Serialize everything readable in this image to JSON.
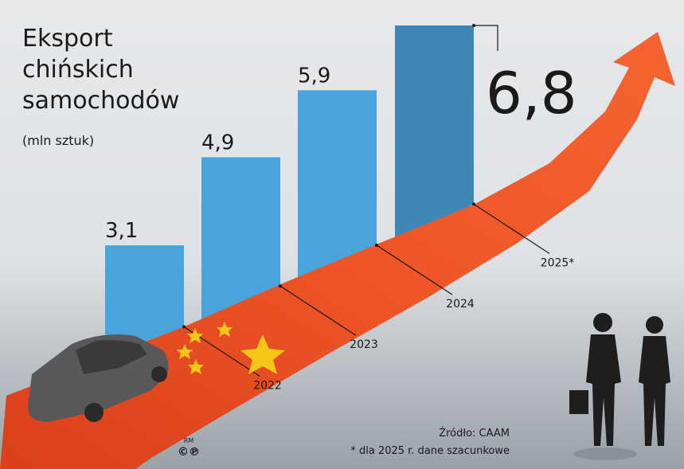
{
  "chart_data": {
    "type": "bar",
    "title": [
      "Eksport",
      "chińskich",
      "samochodów"
    ],
    "subtitle": "(mln sztuk)",
    "categories": [
      "2022",
      "2023",
      "2024",
      "2025*"
    ],
    "values": [
      3.1,
      4.9,
      5.9,
      6.8
    ],
    "value_labels": [
      "3,1",
      "4,9",
      "5,9",
      "6,8"
    ],
    "colors": [
      "#4ba3dc",
      "#4ba3dc",
      "#4ba3dc",
      "#3d88b6"
    ],
    "source": "Źródło: CAAM",
    "note": "* dla 2025 r. dane szacunkowe",
    "logo": "RM",
    "logo_symbols": "©℗"
  }
}
